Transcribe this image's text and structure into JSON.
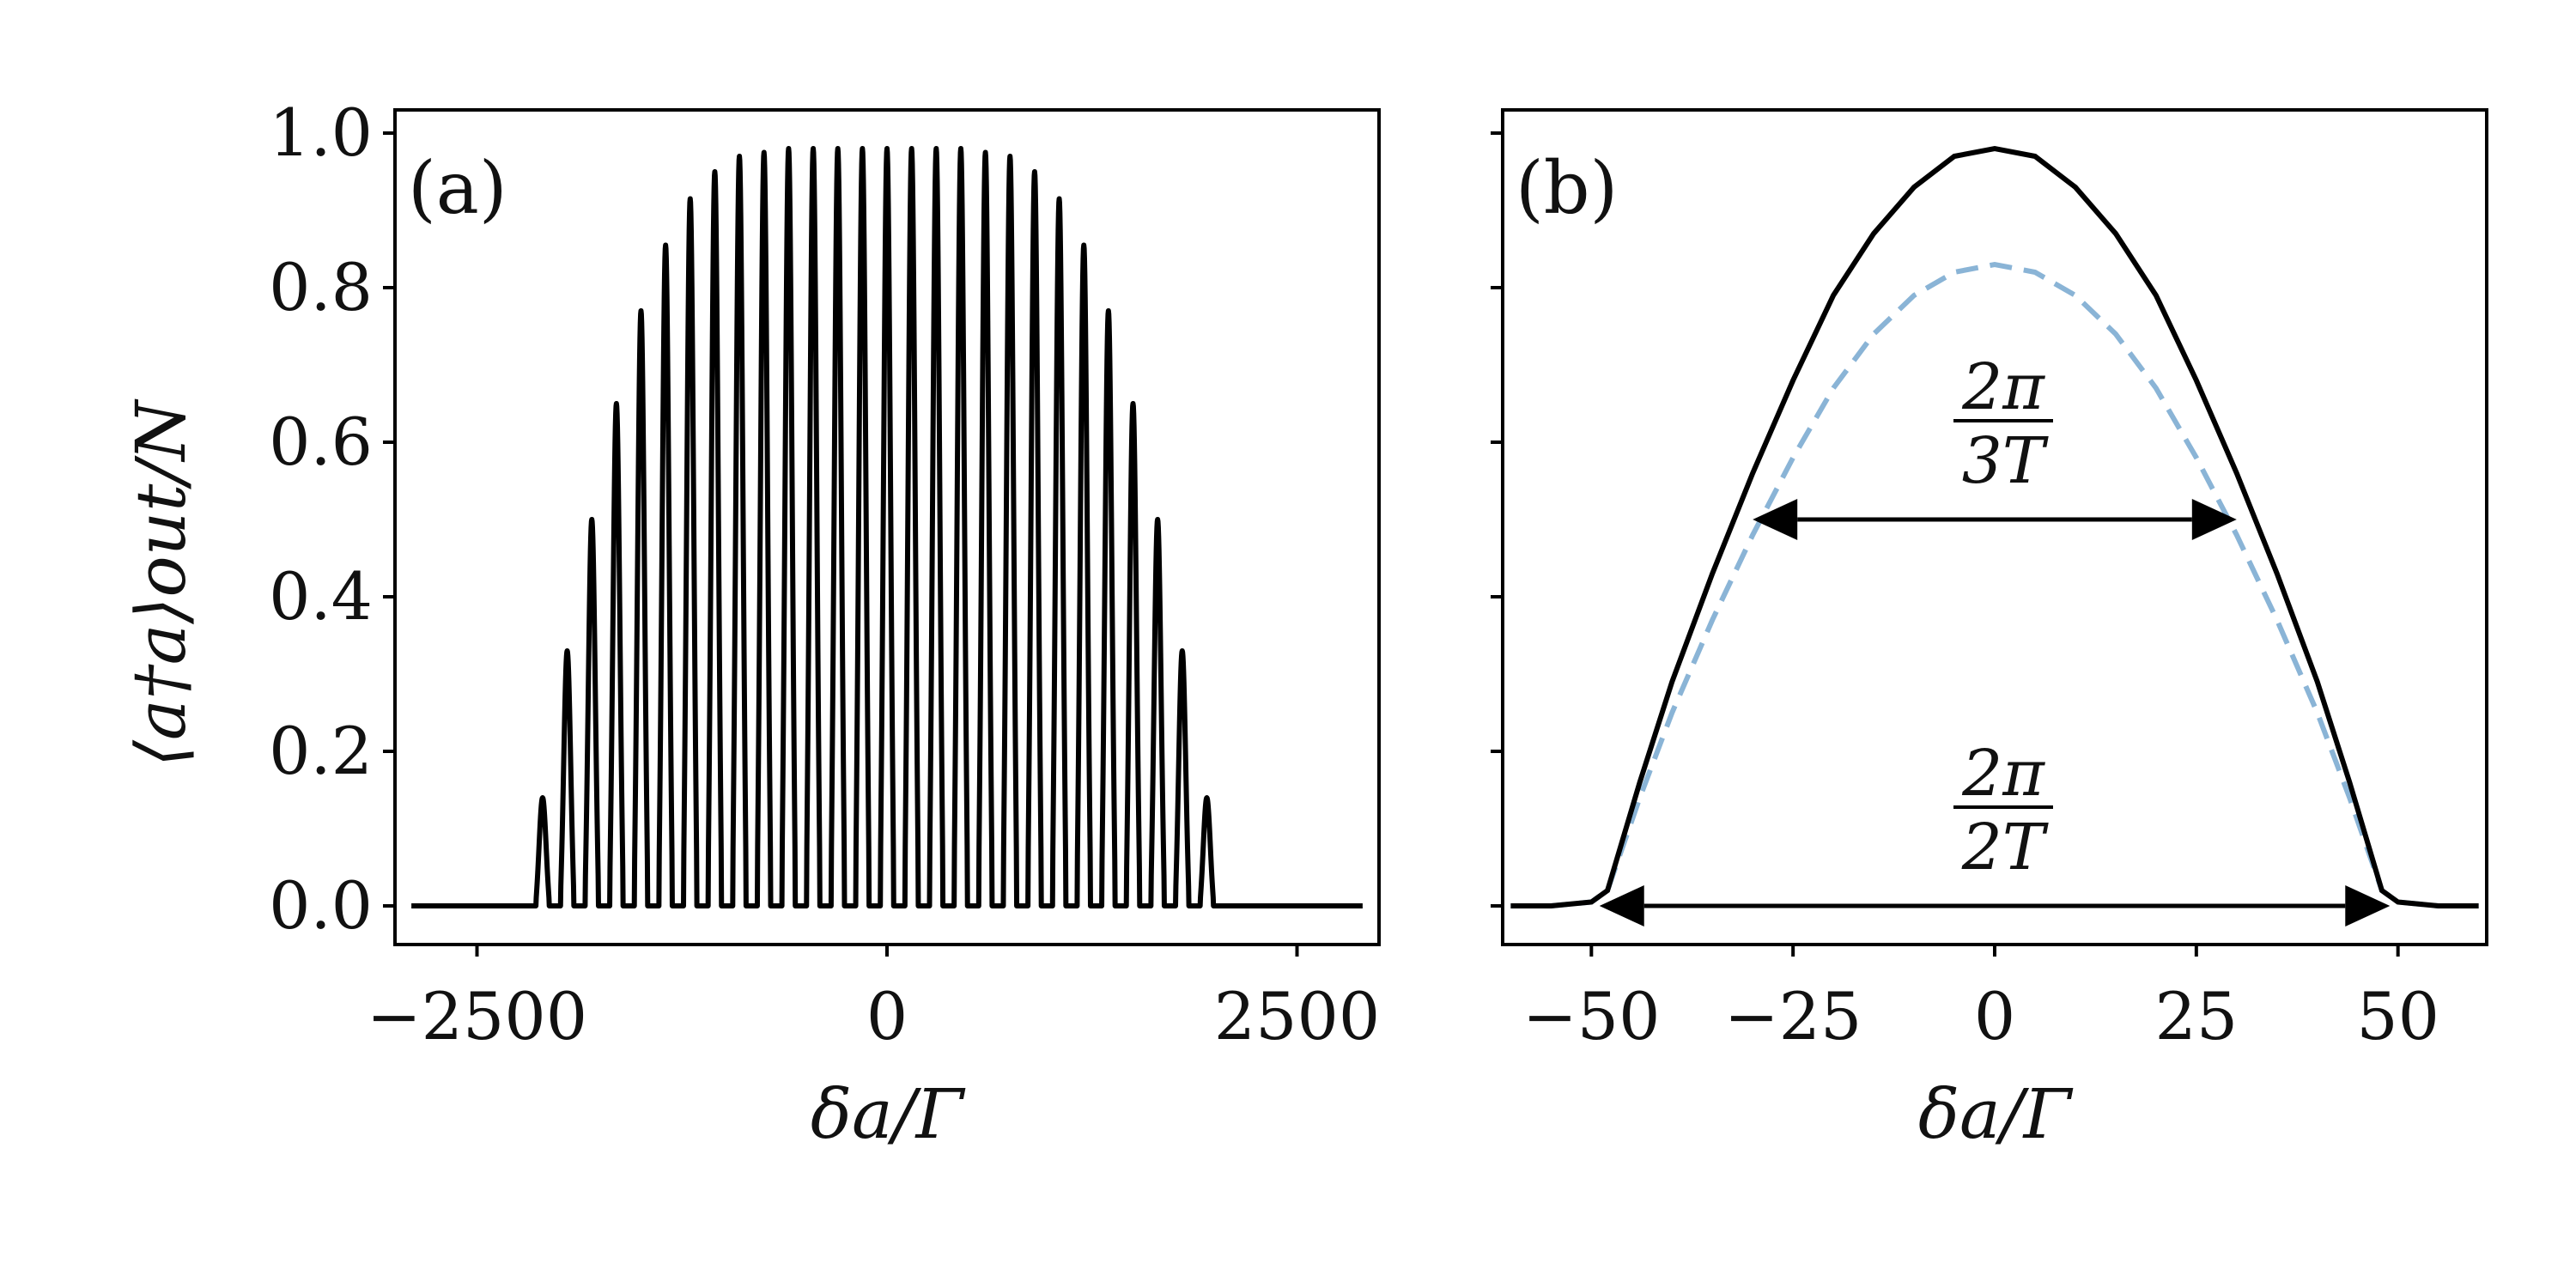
{
  "figure": {
    "ylabel": "⟨a†a⟩out/N"
  },
  "chart_data": [
    {
      "type": "line",
      "panel_label": "(a)",
      "xlabel": "δa/Γ",
      "ylabel": "⟨a†a⟩out/N",
      "xlim": [
        -3000,
        3000
      ],
      "ylim": [
        -0.05,
        1.03
      ],
      "xticks": [
        -2500,
        0,
        2500
      ],
      "xtick_labels": [
        "−2500",
        "0",
        "2500"
      ],
      "yticks": [
        0.0,
        0.2,
        0.4,
        0.6,
        0.8,
        1.0
      ],
      "ytick_labels": [
        "0.0",
        "0.2",
        "0.4",
        "0.6",
        "0.8",
        "1.0"
      ],
      "grid": false,
      "legend": "none",
      "series": [
        {
          "color": "#000000",
          "style": "solid",
          "x_range": [
            -3000,
            3000
          ],
          "comb_spacing": 150,
          "peaks": [
            {
              "x": -2100,
              "y": 0.14
            },
            {
              "x": -1950,
              "y": 0.33
            },
            {
              "x": -1800,
              "y": 0.5
            },
            {
              "x": -1650,
              "y": 0.65
            },
            {
              "x": -1500,
              "y": 0.77
            },
            {
              "x": -1350,
              "y": 0.855
            },
            {
              "x": -1200,
              "y": 0.915
            },
            {
              "x": -1050,
              "y": 0.95
            },
            {
              "x": -900,
              "y": 0.97
            },
            {
              "x": -750,
              "y": 0.975
            },
            {
              "x": -600,
              "y": 0.98
            },
            {
              "x": -450,
              "y": 0.98
            },
            {
              "x": -300,
              "y": 0.98
            },
            {
              "x": -150,
              "y": 0.98
            },
            {
              "x": 0,
              "y": 0.98
            },
            {
              "x": 150,
              "y": 0.98
            },
            {
              "x": 300,
              "y": 0.98
            },
            {
              "x": 450,
              "y": 0.98
            },
            {
              "x": 600,
              "y": 0.975
            },
            {
              "x": 750,
              "y": 0.97
            },
            {
              "x": 900,
              "y": 0.95
            },
            {
              "x": 1050,
              "y": 0.915
            },
            {
              "x": 1200,
              "y": 0.855
            },
            {
              "x": 1350,
              "y": 0.77
            },
            {
              "x": 1500,
              "y": 0.65
            },
            {
              "x": 1650,
              "y": 0.5
            },
            {
              "x": 1800,
              "y": 0.33
            },
            {
              "x": 1950,
              "y": 0.14
            }
          ]
        }
      ]
    },
    {
      "type": "line",
      "panel_label": "(b)",
      "xlabel": "δa/Γ",
      "xlim": [
        -61,
        61
      ],
      "ylim": [
        -0.05,
        1.03
      ],
      "xticks": [
        -50,
        -25,
        0,
        25,
        50
      ],
      "xtick_labels": [
        "−50",
        "−25",
        "0",
        "25",
        "50"
      ],
      "yticks": [
        0.0,
        0.2,
        0.4,
        0.6,
        0.8,
        1.0
      ],
      "ytick_labels": [],
      "grid": false,
      "legend": "none",
      "series": [
        {
          "color": "#000000",
          "style": "solid",
          "x": [
            -60,
            -55,
            -50,
            -48,
            -46,
            -44,
            -40,
            -35,
            -30,
            -25,
            -20,
            -15,
            -10,
            -5,
            0,
            5,
            10,
            15,
            20,
            25,
            30,
            35,
            40,
            44,
            46,
            48,
            50,
            55,
            60
          ],
          "y": [
            0.0,
            0.0,
            0.005,
            0.02,
            0.09,
            0.16,
            0.29,
            0.43,
            0.56,
            0.68,
            0.79,
            0.87,
            0.93,
            0.97,
            0.98,
            0.97,
            0.93,
            0.87,
            0.79,
            0.68,
            0.56,
            0.43,
            0.29,
            0.16,
            0.09,
            0.02,
            0.005,
            0.0,
            0.0
          ]
        },
        {
          "color": "#8ab4d6",
          "style": "dashed",
          "x": [
            -60,
            -55,
            -50,
            -48,
            -46,
            -44,
            -40,
            -35,
            -30,
            -25,
            -20,
            -15,
            -10,
            -5,
            0,
            5,
            10,
            15,
            20,
            25,
            30,
            35,
            40,
            44,
            46,
            48,
            50,
            55,
            60
          ],
          "y": [
            0.0,
            0.0,
            0.005,
            0.02,
            0.08,
            0.14,
            0.25,
            0.37,
            0.48,
            0.58,
            0.67,
            0.74,
            0.79,
            0.82,
            0.83,
            0.82,
            0.79,
            0.74,
            0.67,
            0.58,
            0.48,
            0.37,
            0.25,
            0.14,
            0.08,
            0.02,
            0.005,
            0.0,
            0.0
          ]
        }
      ],
      "annotations": [
        {
          "numerator": "2π",
          "denominator": "3T",
          "arrow_from": -30,
          "arrow_to": 30,
          "arrow_y": 0.5
        },
        {
          "numerator": "2π",
          "denominator": "2T",
          "arrow_from": -49,
          "arrow_to": 49,
          "arrow_y": 0.0
        }
      ]
    }
  ]
}
